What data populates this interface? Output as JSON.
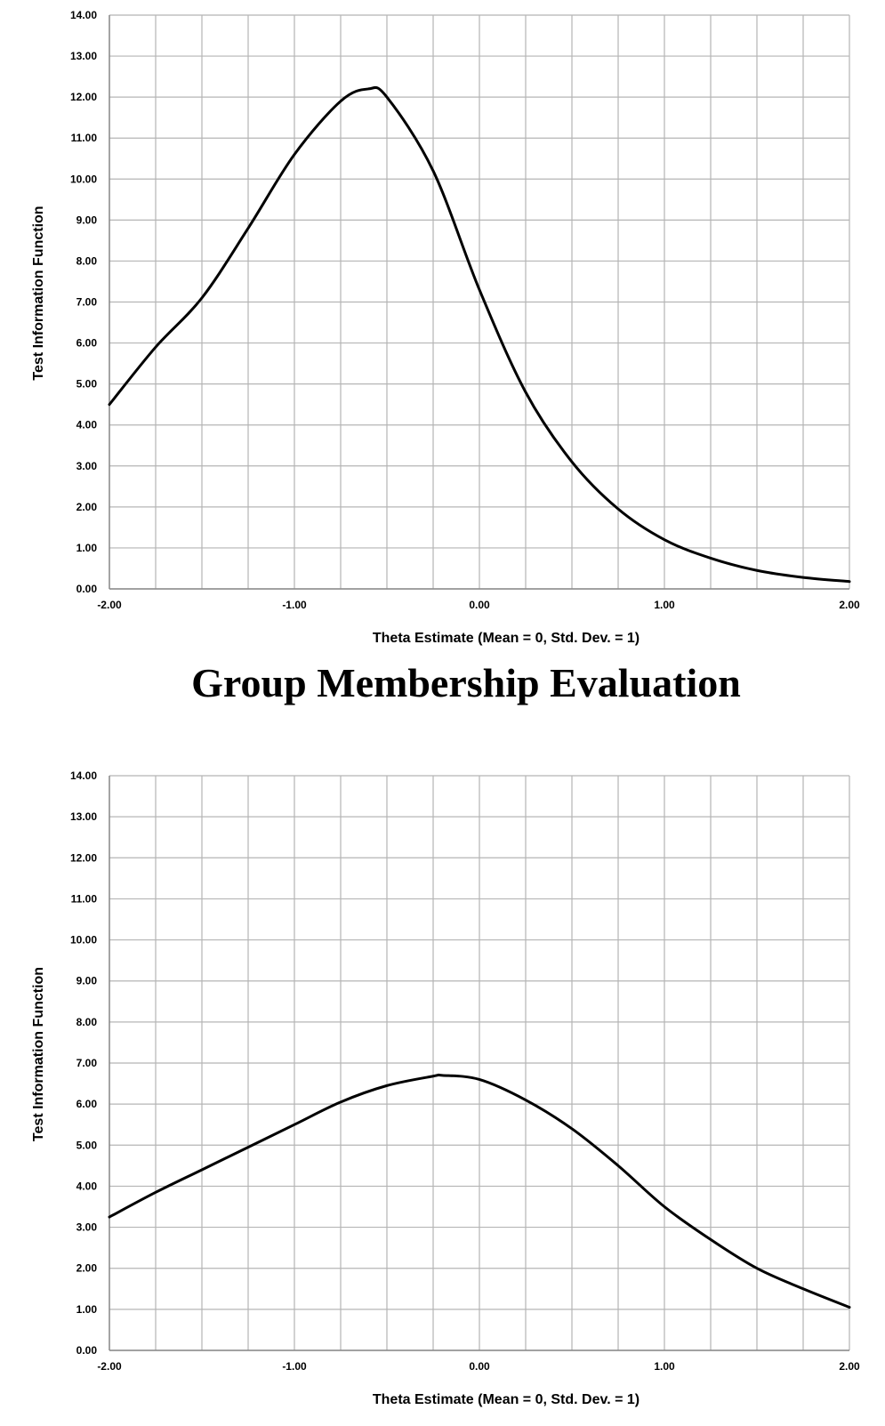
{
  "heading": "Group Membership Evaluation",
  "chart_data": [
    {
      "type": "line",
      "xlabel": "Theta Estimate (Mean = 0, Std. Dev. = 1)",
      "ylabel": "Test Information Function",
      "xlim": [
        -2,
        2
      ],
      "ylim": [
        0,
        14
      ],
      "x_ticks": [
        "-2.00",
        "-1.00",
        "0.00",
        "1.00",
        "2.00"
      ],
      "y_ticks": [
        "0.00",
        "1.00",
        "2.00",
        "3.00",
        "4.00",
        "5.00",
        "6.00",
        "7.00",
        "8.00",
        "9.00",
        "10.00",
        "11.00",
        "12.00",
        "13.00",
        "14.00"
      ],
      "grid": true,
      "series": [
        {
          "x": [
            -2.0,
            -1.75,
            -1.5,
            -1.25,
            -1.0,
            -0.75,
            -0.6,
            -0.5,
            -0.25,
            0.0,
            0.25,
            0.5,
            0.75,
            1.0,
            1.25,
            1.5,
            1.75,
            2.0
          ],
          "y": [
            4.5,
            5.9,
            7.1,
            8.8,
            10.6,
            11.9,
            12.2,
            12.0,
            10.2,
            7.3,
            4.8,
            3.1,
            1.95,
            1.2,
            0.75,
            0.45,
            0.28,
            0.18
          ]
        }
      ]
    },
    {
      "type": "line",
      "xlabel": "Theta Estimate (Mean = 0, Std. Dev. = 1)",
      "ylabel": "Test Information Function",
      "xlim": [
        -2,
        2
      ],
      "ylim": [
        0,
        14
      ],
      "x_ticks": [
        "-2.00",
        "-1.00",
        "0.00",
        "1.00",
        "2.00"
      ],
      "y_ticks": [
        "0.00",
        "1.00",
        "2.00",
        "3.00",
        "4.00",
        "5.00",
        "6.00",
        "7.00",
        "8.00",
        "9.00",
        "10.00",
        "11.00",
        "12.00",
        "13.00",
        "14.00"
      ],
      "grid": true,
      "series": [
        {
          "x": [
            -2.0,
            -1.75,
            -1.5,
            -1.25,
            -1.0,
            -0.75,
            -0.5,
            -0.25,
            -0.2,
            0.0,
            0.25,
            0.5,
            0.75,
            1.0,
            1.25,
            1.5,
            1.75,
            2.0
          ],
          "y": [
            3.25,
            3.85,
            4.4,
            4.95,
            5.5,
            6.05,
            6.45,
            6.68,
            6.7,
            6.6,
            6.1,
            5.4,
            4.5,
            3.5,
            2.7,
            2.0,
            1.5,
            1.05
          ]
        }
      ]
    }
  ]
}
